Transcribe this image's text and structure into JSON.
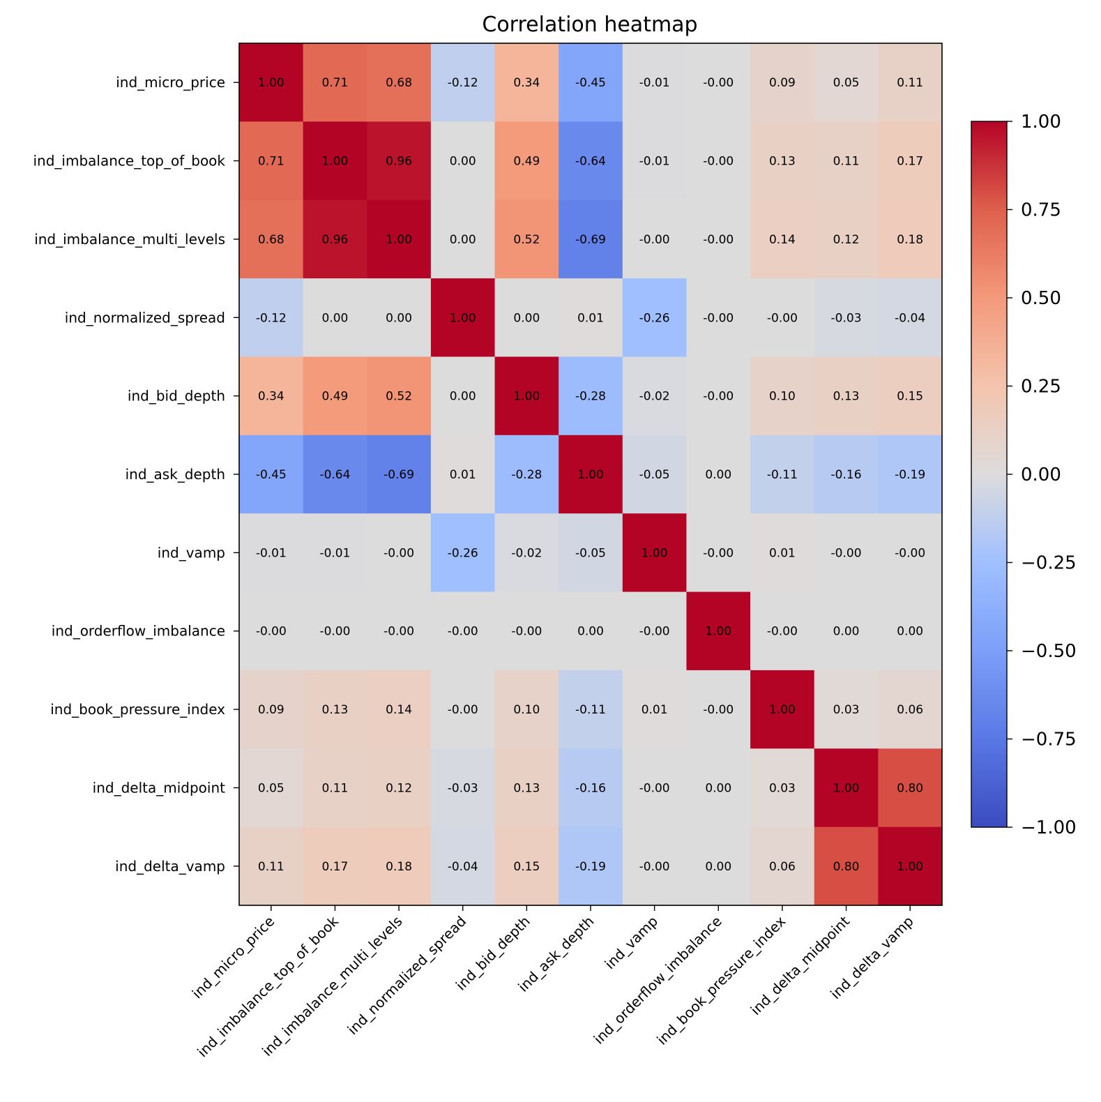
{
  "chart_data": {
    "type": "heatmap",
    "title": "Correlation heatmap",
    "colormap": "coolwarm",
    "labels": [
      "ind_micro_price",
      "ind_imbalance_top_of_book",
      "ind_imbalance_multi_levels",
      "ind_normalized_spread",
      "ind_bid_depth",
      "ind_ask_depth",
      "ind_vamp",
      "ind_orderflow_imbalance",
      "ind_book_pressure_index",
      "ind_delta_midpoint",
      "ind_delta_vamp"
    ],
    "values": [
      [
        1.0,
        0.71,
        0.68,
        -0.12,
        0.34,
        -0.45,
        -0.01,
        -0.0,
        0.09,
        0.05,
        0.11
      ],
      [
        0.71,
        1.0,
        0.96,
        0.0,
        0.49,
        -0.64,
        -0.01,
        -0.0,
        0.13,
        0.11,
        0.17
      ],
      [
        0.68,
        0.96,
        1.0,
        0.0,
        0.52,
        -0.69,
        -0.0,
        -0.0,
        0.14,
        0.12,
        0.18
      ],
      [
        -0.12,
        0.0,
        0.0,
        1.0,
        0.0,
        0.01,
        -0.26,
        -0.0,
        -0.0,
        -0.03,
        -0.04
      ],
      [
        0.34,
        0.49,
        0.52,
        0.0,
        1.0,
        -0.28,
        -0.02,
        -0.0,
        0.1,
        0.13,
        0.15
      ],
      [
        -0.45,
        -0.64,
        -0.69,
        0.01,
        -0.28,
        1.0,
        -0.05,
        0.0,
        -0.11,
        -0.16,
        -0.19
      ],
      [
        -0.01,
        -0.01,
        -0.0,
        -0.26,
        -0.02,
        -0.05,
        1.0,
        -0.0,
        0.01,
        -0.0,
        -0.0
      ],
      [
        -0.0,
        -0.0,
        -0.0,
        -0.0,
        -0.0,
        0.0,
        -0.0,
        1.0,
        -0.0,
        0.0,
        0.0
      ],
      [
        0.09,
        0.13,
        0.14,
        -0.0,
        0.1,
        -0.11,
        0.01,
        -0.0,
        1.0,
        0.03,
        0.06
      ],
      [
        0.05,
        0.11,
        0.12,
        -0.03,
        0.13,
        -0.16,
        -0.0,
        0.0,
        0.03,
        1.0,
        0.8
      ],
      [
        0.11,
        0.17,
        0.18,
        -0.04,
        0.15,
        -0.19,
        -0.0,
        0.0,
        0.06,
        0.8,
        1.0
      ]
    ],
    "display_labels": [
      [
        "1.00",
        "0.71",
        "0.68",
        "-0.12",
        "0.34",
        "-0.45",
        "-0.01",
        "-0.00",
        "0.09",
        "0.05",
        "0.11"
      ],
      [
        "0.71",
        "1.00",
        "0.96",
        "0.00",
        "0.49",
        "-0.64",
        "-0.01",
        "-0.00",
        "0.13",
        "0.11",
        "0.17"
      ],
      [
        "0.68",
        "0.96",
        "1.00",
        "0.00",
        "0.52",
        "-0.69",
        "-0.00",
        "-0.00",
        "0.14",
        "0.12",
        "0.18"
      ],
      [
        "-0.12",
        "0.00",
        "0.00",
        "1.00",
        "0.00",
        "0.01",
        "-0.26",
        "-0.00",
        "-0.00",
        "-0.03",
        "-0.04"
      ],
      [
        "0.34",
        "0.49",
        "0.52",
        "0.00",
        "1.00",
        "-0.28",
        "-0.02",
        "-0.00",
        "0.10",
        "0.13",
        "0.15"
      ],
      [
        "-0.45",
        "-0.64",
        "-0.69",
        "0.01",
        "-0.28",
        "1.00",
        "-0.05",
        "0.00",
        "-0.11",
        "-0.16",
        "-0.19"
      ],
      [
        "-0.01",
        "-0.01",
        "-0.00",
        "-0.26",
        "-0.02",
        "-0.05",
        "1.00",
        "-0.00",
        "0.01",
        "-0.00",
        "-0.00"
      ],
      [
        "-0.00",
        "-0.00",
        "-0.00",
        "-0.00",
        "-0.00",
        "0.00",
        "-0.00",
        "1.00",
        "-0.00",
        "0.00",
        "0.00"
      ],
      [
        "0.09",
        "0.13",
        "0.14",
        "-0.00",
        "0.10",
        "-0.11",
        "0.01",
        "-0.00",
        "1.00",
        "0.03",
        "0.06"
      ],
      [
        "0.05",
        "0.11",
        "0.12",
        "-0.03",
        "0.13",
        "-0.16",
        "-0.00",
        "0.00",
        "0.03",
        "1.00",
        "0.80"
      ],
      [
        "0.11",
        "0.17",
        "0.18",
        "-0.04",
        "0.15",
        "-0.19",
        "-0.00",
        "0.00",
        "0.06",
        "0.80",
        "1.00"
      ]
    ],
    "vmin": -1.0,
    "vmax": 1.0,
    "colorbar": {
      "ticks": [
        1.0,
        0.75,
        0.5,
        0.25,
        0.0,
        -0.25,
        -0.5,
        -0.75,
        -1.0
      ],
      "tick_labels": [
        "1.00",
        "0.75",
        "0.50",
        "0.25",
        "0.00",
        "−0.25",
        "−0.50",
        "−0.75",
        "−1.00"
      ]
    }
  }
}
